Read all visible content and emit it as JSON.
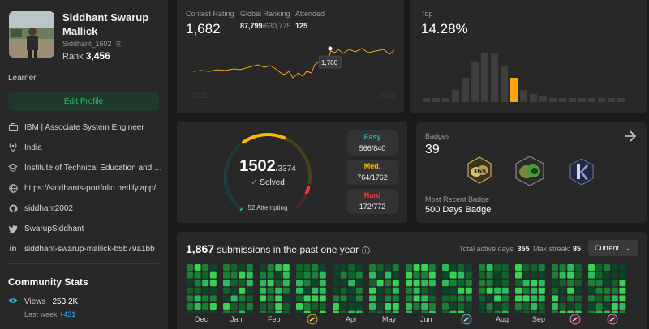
{
  "profile": {
    "name": "Siddhant Swarup Mallick",
    "handle": "Siddhant_1602",
    "rank_label": "Rank",
    "rank_value": "3,456",
    "title": "Learner",
    "edit_button": "Edit Profile",
    "info": [
      {
        "icon": "work-icon",
        "text": "IBM | Associate System Engineer"
      },
      {
        "icon": "location-icon",
        "text": "India"
      },
      {
        "icon": "school-icon",
        "text": "Institute of Technical Education and Research"
      },
      {
        "icon": "globe-icon",
        "text": "https://siddhants-portfolio.netlify.app/"
      },
      {
        "icon": "github-icon",
        "text": "siddhant2002"
      },
      {
        "icon": "twitter-icon",
        "text": "SwarupSiddhant"
      },
      {
        "icon": "linkedin-icon",
        "text": "siddhant-swarup-mallick-b5b79a1bb"
      }
    ]
  },
  "community": {
    "title": "Community Stats",
    "views_label": "Views",
    "views_value": "253.2K",
    "last_week_label": "Last week",
    "last_week_value": "+431"
  },
  "contest": {
    "rating_label": "Contest Rating",
    "rating_value": "1,682",
    "global_label": "Global Ranking",
    "global_value": "87,799",
    "global_total": "/630,775",
    "attended_label": "Attended",
    "attended_value": "125",
    "tooltip": "1,760",
    "year_start": "2021",
    "year_end": "2024"
  },
  "top": {
    "label": "Top",
    "value": "14.28%",
    "histogram": [
      1,
      1,
      1,
      3,
      6,
      10,
      12,
      12,
      9,
      6,
      3,
      2,
      1.5,
      1,
      1,
      1,
      1,
      1,
      1,
      1,
      1
    ],
    "highlight_index": 9
  },
  "solved": {
    "count": "1502",
    "total": "/3374",
    "solved_label": "Solved",
    "attempting": "52 Attempting",
    "easy": {
      "label": "Easy",
      "value": "566/840",
      "fraction": 0.674
    },
    "medium": {
      "label": "Med.",
      "value": "764/1762",
      "fraction": 0.434
    },
    "hard": {
      "label": "Hard",
      "value": "172/772",
      "fraction": 0.223
    }
  },
  "badges": {
    "label": "Badges",
    "count": "39",
    "recent_label": "Most Recent Badge",
    "recent_value": "500 Days Badge"
  },
  "submissions": {
    "count": "1,867",
    "text": "submissions in the past one year",
    "active_label": "Total active days:",
    "active_value": "355",
    "streak_label": "Max streak:",
    "streak_value": "85",
    "select_value": "Current",
    "months": [
      "Dec",
      "Jan",
      "Feb",
      "Apr",
      "May",
      "Jun",
      "Aug",
      "Sep"
    ]
  },
  "colors": {
    "easy": "#1cbaba",
    "medium": "#ffb700",
    "hard": "#f63737",
    "green": "#2cbb5d",
    "accent": "#ffa116"
  }
}
